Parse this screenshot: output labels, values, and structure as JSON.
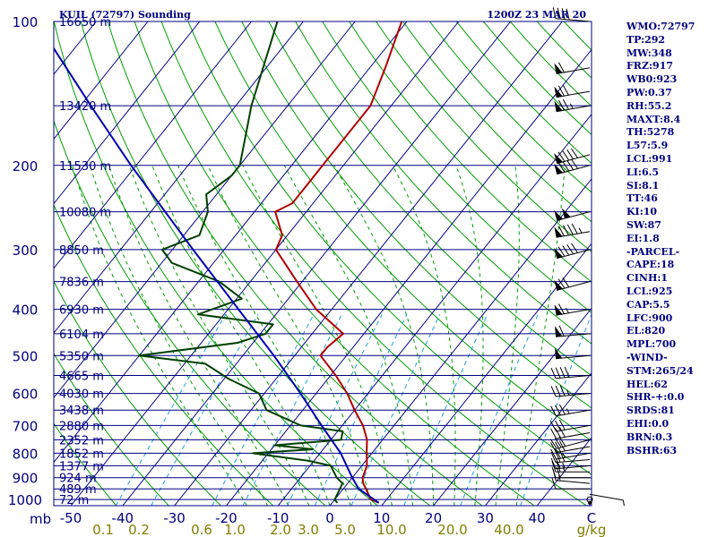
{
  "header": {
    "station": "KUIL (72797) Sounding",
    "time": "1200Z 23 MAR 20"
  },
  "stats": [
    "WMO:72797",
    "TP:292",
    "MW:348",
    "FRZ:917",
    "WB0:923",
    "PW:0.37",
    "RH:55.2",
    "MAXT:8.4",
    "TH:5278",
    "L57:5.9",
    "LCL:991",
    "LI:6.5",
    "SI:8.1",
    "TT:46",
    "KI:10",
    "SW:87",
    "EI:1.8",
    "-PARCEL-",
    "CAPE:18",
    "CINH:1",
    "LCL:925",
    "CAP:5.5",
    "LFC:900",
    "EL:820",
    "MPL:700",
    "-WIND-",
    "STM:265/24",
    "HEL:62",
    "SHR-+:0.0",
    "SRDS:81",
    "EHI:0.0",
    "BRN:0.3",
    "BSHR:63"
  ],
  "chart_data": {
    "type": "line",
    "subtype": "skew-T log-P sounding",
    "y_axis_unit": "mb",
    "x_axis_unit": "C",
    "mixing_ratio_unit": "g/kg",
    "pressure_levels": [
      100,
      200,
      300,
      400,
      500,
      600,
      700,
      800,
      900,
      1000
    ],
    "temperature_ticks": [
      -50,
      -40,
      -30,
      -20,
      -10,
      0,
      10,
      20,
      30,
      40
    ],
    "mixing_ratio_ticks": [
      "0.1",
      "0.2",
      "0.6",
      "1.0",
      "2.0",
      "3.0",
      "5.0",
      "10.0",
      "20.0",
      "40.0"
    ],
    "height_labels": [
      {
        "p": 100,
        "label": "16650 m"
      },
      {
        "p": 150,
        "label": "13420 m"
      },
      {
        "p": 200,
        "label": "11530 m"
      },
      {
        "p": 250,
        "label": "10080 m"
      },
      {
        "p": 300,
        "label": "8850 m"
      },
      {
        "p": 350,
        "label": "7836 m"
      },
      {
        "p": 400,
        "label": "6930 m"
      },
      {
        "p": 450,
        "label": "6104 m"
      },
      {
        "p": 500,
        "label": "5350 m"
      },
      {
        "p": 550,
        "label": "4665 m"
      },
      {
        "p": 600,
        "label": "4030 m"
      },
      {
        "p": 650,
        "label": "3438 m"
      },
      {
        "p": 700,
        "label": "2880 m"
      },
      {
        "p": 750,
        "label": "2352 m"
      },
      {
        "p": 800,
        "label": "1852 m"
      },
      {
        "p": 850,
        "label": "1377 m"
      },
      {
        "p": 900,
        "label": "924 m"
      },
      {
        "p": 950,
        "label": "489 m"
      },
      {
        "p": 1000,
        "label": "72 m"
      }
    ],
    "series": [
      {
        "key": "temperature",
        "color": "#b00000",
        "points": [
          {
            "p": 1016,
            "t": 9
          },
          {
            "p": 1000,
            "t": 7
          },
          {
            "p": 925,
            "t": 3
          },
          {
            "p": 900,
            "t": 2
          },
          {
            "p": 850,
            "t": 1
          },
          {
            "p": 800,
            "t": -1
          },
          {
            "p": 750,
            "t": -3
          },
          {
            "p": 700,
            "t": -6
          },
          {
            "p": 650,
            "t": -10
          },
          {
            "p": 600,
            "t": -14
          },
          {
            "p": 550,
            "t": -19
          },
          {
            "p": 500,
            "t": -25
          },
          {
            "p": 480,
            "t": -25
          },
          {
            "p": 450,
            "t": -24
          },
          {
            "p": 400,
            "t": -33
          },
          {
            "p": 350,
            "t": -41
          },
          {
            "p": 300,
            "t": -50
          },
          {
            "p": 280,
            "t": -51
          },
          {
            "p": 250,
            "t": -56
          },
          {
            "p": 240,
            "t": -54
          },
          {
            "p": 220,
            "t": -54
          },
          {
            "p": 200,
            "t": -54
          },
          {
            "p": 150,
            "t": -54
          },
          {
            "p": 125,
            "t": -57
          },
          {
            "p": 100,
            "t": -61
          }
        ]
      },
      {
        "key": "dewpoint",
        "color": "#004000",
        "points": [
          {
            "p": 1016,
            "t": 1
          },
          {
            "p": 1000,
            "t": 0
          },
          {
            "p": 925,
            "t": -1
          },
          {
            "p": 900,
            "t": -3
          },
          {
            "p": 850,
            "t": -6
          },
          {
            "p": 830,
            "t": -11
          },
          {
            "p": 800,
            "t": -23
          },
          {
            "p": 785,
            "t": -12
          },
          {
            "p": 770,
            "t": -20
          },
          {
            "p": 750,
            "t": -8
          },
          {
            "p": 720,
            "t": -9
          },
          {
            "p": 700,
            "t": -18
          },
          {
            "p": 650,
            "t": -27
          },
          {
            "p": 600,
            "t": -31
          },
          {
            "p": 560,
            "t": -39
          },
          {
            "p": 520,
            "t": -46
          },
          {
            "p": 500,
            "t": -60
          },
          {
            "p": 470,
            "t": -43
          },
          {
            "p": 450,
            "t": -39
          },
          {
            "p": 430,
            "t": -39
          },
          {
            "p": 410,
            "t": -55
          },
          {
            "p": 380,
            "t": -49
          },
          {
            "p": 350,
            "t": -56
          },
          {
            "p": 320,
            "t": -68
          },
          {
            "p": 300,
            "t": -72
          },
          {
            "p": 280,
            "t": -67
          },
          {
            "p": 250,
            "t": -69
          },
          {
            "p": 230,
            "t": -72
          },
          {
            "p": 210,
            "t": -70
          },
          {
            "p": 200,
            "t": -70
          },
          {
            "p": 150,
            "t": -77
          },
          {
            "p": 100,
            "t": -85
          }
        ]
      },
      {
        "key": "parcel",
        "color": "#0000b0",
        "points": [
          {
            "p": 1016,
            "t": 9
          },
          {
            "p": 950,
            "t": 3
          },
          {
            "p": 900,
            "t": 0
          },
          {
            "p": 800,
            "t": -6
          },
          {
            "p": 700,
            "t": -14
          },
          {
            "p": 600,
            "t": -23
          },
          {
            "p": 500,
            "t": -34
          },
          {
            "p": 400,
            "t": -48
          },
          {
            "p": 300,
            "t": -66
          },
          {
            "p": 200,
            "t": -91
          },
          {
            "p": 150,
            "t": -108
          },
          {
            "p": 110,
            "t": -126
          },
          {
            "p": 100,
            "t": -131
          }
        ]
      }
    ],
    "wind_barbs": [
      {
        "p": 1000,
        "dir": 90,
        "kt": 0
      },
      {
        "p": 975,
        "dir": 100,
        "kt": 5
      },
      {
        "p": 950,
        "dir": 270,
        "kt": 10
      },
      {
        "p": 925,
        "dir": 275,
        "kt": 15
      },
      {
        "p": 900,
        "dir": 270,
        "kt": 20
      },
      {
        "p": 875,
        "dir": 270,
        "kt": 25
      },
      {
        "p": 850,
        "dir": 265,
        "kt": 25
      },
      {
        "p": 825,
        "dir": 265,
        "kt": 30
      },
      {
        "p": 800,
        "dir": 260,
        "kt": 25
      },
      {
        "p": 775,
        "dir": 260,
        "kt": 30
      },
      {
        "p": 750,
        "dir": 255,
        "kt": 30
      },
      {
        "p": 725,
        "dir": 260,
        "kt": 30
      },
      {
        "p": 700,
        "dir": 260,
        "kt": 30
      },
      {
        "p": 650,
        "dir": 260,
        "kt": 35
      },
      {
        "p": 600,
        "dir": 265,
        "kt": 35
      },
      {
        "p": 550,
        "dir": 265,
        "kt": 40
      },
      {
        "p": 500,
        "dir": 265,
        "kt": 50
      },
      {
        "p": 450,
        "dir": 265,
        "kt": 60
      },
      {
        "p": 400,
        "dir": 260,
        "kt": 65
      },
      {
        "p": 350,
        "dir": 255,
        "kt": 70
      },
      {
        "p": 300,
        "dir": 255,
        "kt": 90
      },
      {
        "p": 275,
        "dir": 260,
        "kt": 95
      },
      {
        "p": 250,
        "dir": 255,
        "kt": 100
      },
      {
        "p": 200,
        "dir": 255,
        "kt": 90
      },
      {
        "p": 190,
        "dir": 255,
        "kt": 90
      },
      {
        "p": 150,
        "dir": 260,
        "kt": 75
      },
      {
        "p": 140,
        "dir": 260,
        "kt": 70
      },
      {
        "p": 125,
        "dir": 260,
        "kt": 60
      },
      {
        "p": 100,
        "dir": 275,
        "kt": 40
      }
    ]
  }
}
